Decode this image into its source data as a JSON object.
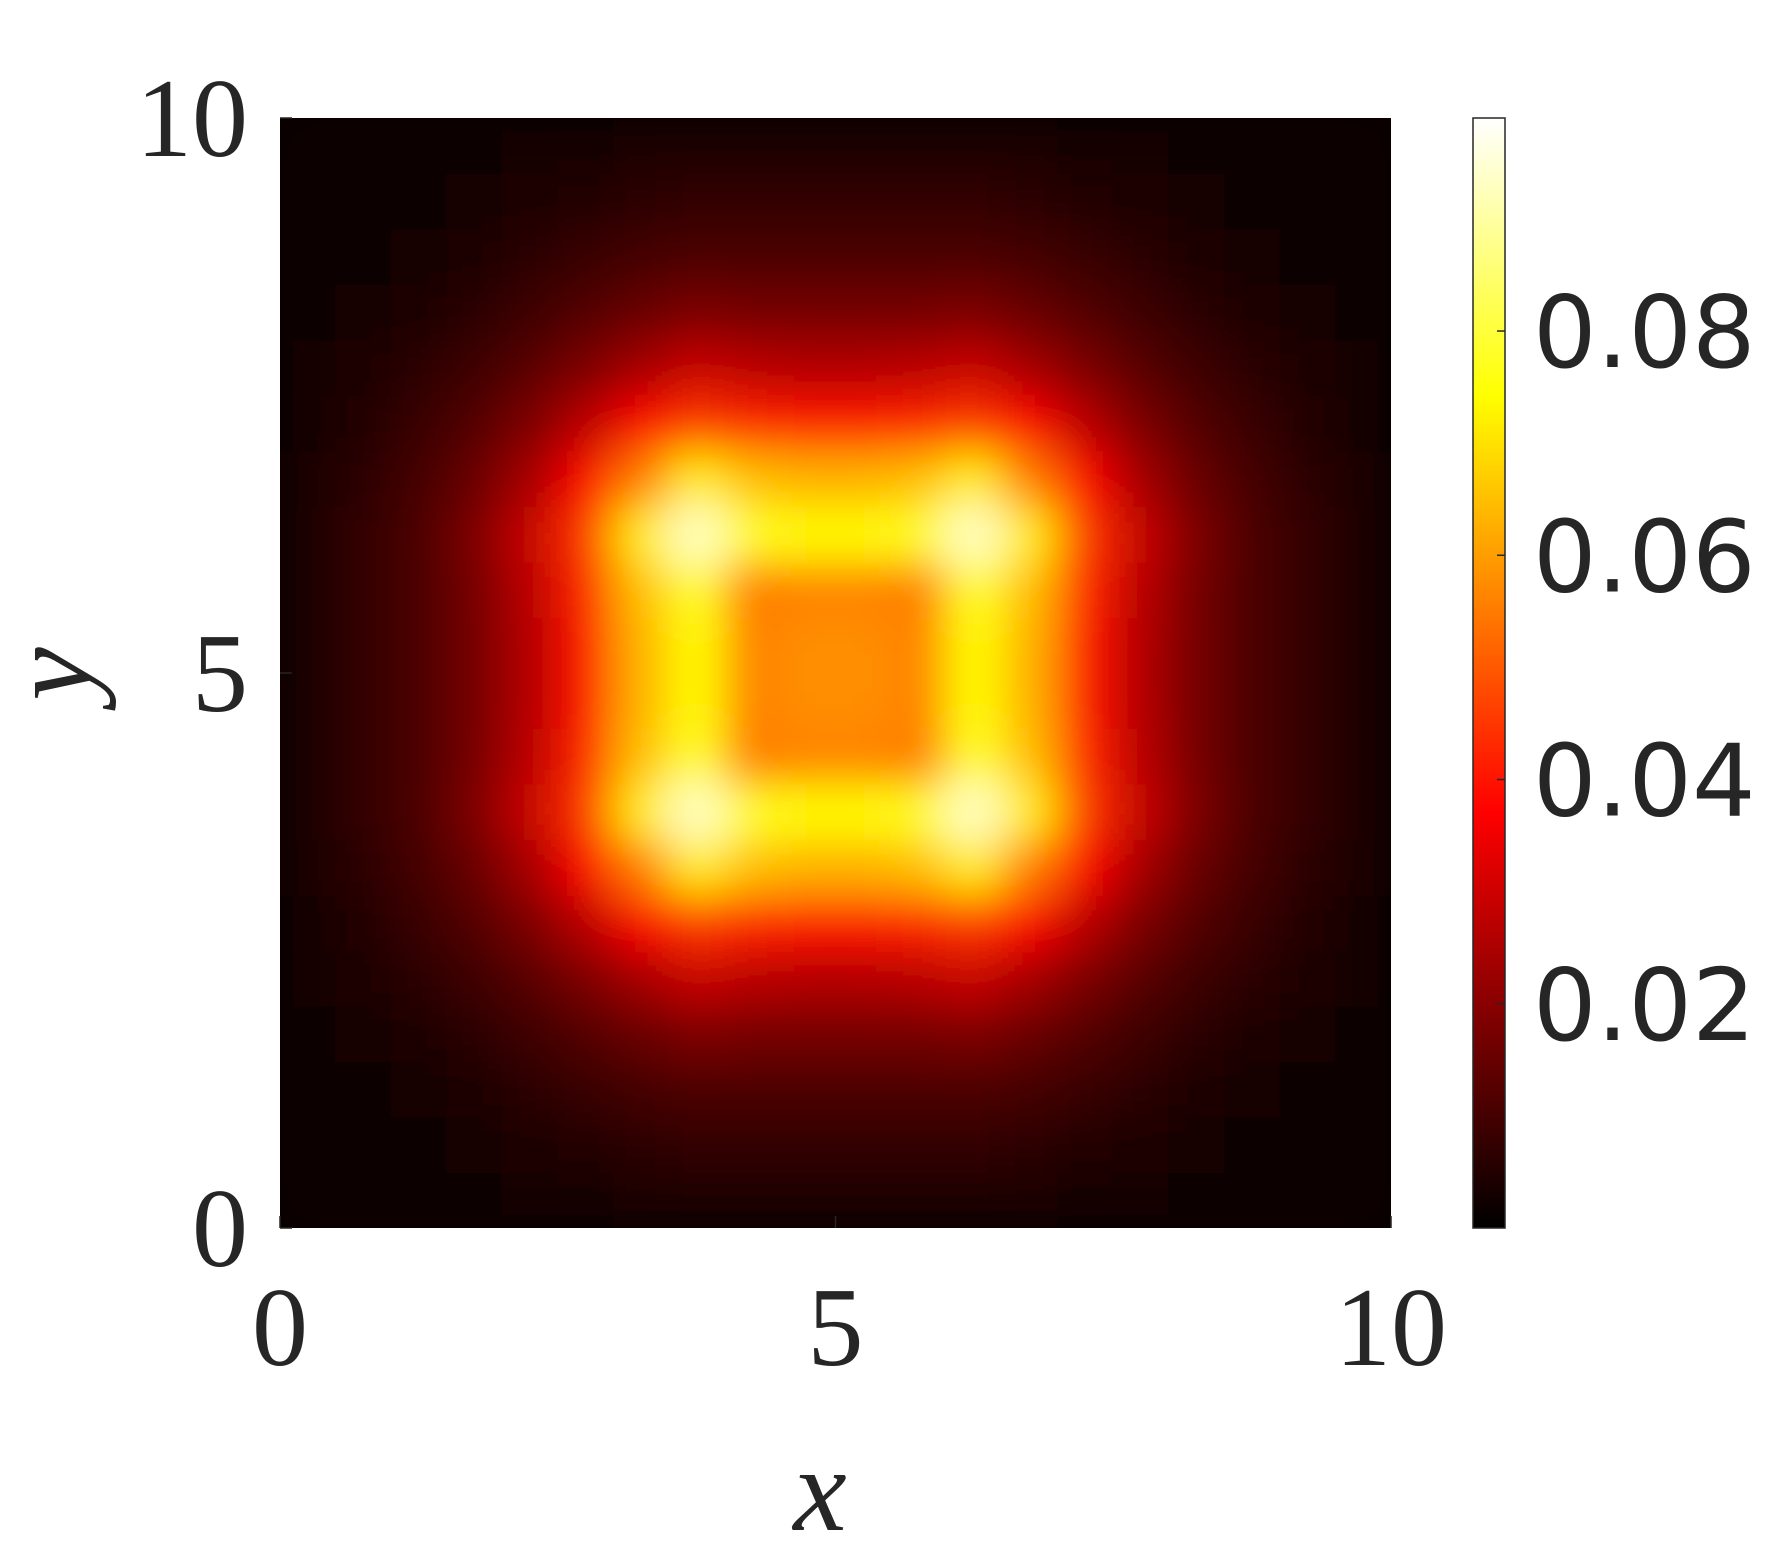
{
  "chart_data": {
    "type": "heatmap",
    "xlabel": "x",
    "ylabel": "y",
    "colormap": "hot",
    "xlim": [
      0,
      10
    ],
    "ylim": [
      0,
      10
    ],
    "xticks": [
      0,
      5,
      10
    ],
    "yticks": [
      0,
      5,
      10
    ],
    "zlim": [
      0,
      0.099
    ],
    "zticks": [
      0.02,
      0.04,
      0.06,
      0.08
    ],
    "x": [
      0.25,
      0.75,
      1.25,
      1.75,
      2.25,
      2.75,
      3.25,
      3.75,
      4.25,
      4.75,
      5.25,
      5.75,
      6.25,
      6.75,
      7.25,
      7.75,
      8.25,
      8.75,
      9.25,
      9.75
    ],
    "y": [
      0.25,
      0.75,
      1.25,
      1.75,
      2.25,
      2.75,
      3.25,
      3.75,
      4.25,
      4.75,
      5.25,
      5.75,
      6.25,
      6.75,
      7.25,
      7.75,
      8.25,
      8.75,
      9.25,
      9.75
    ],
    "z": [
      [
        0.001,
        0.001,
        0.002,
        0.002,
        0.003,
        0.003,
        0.004,
        0.004,
        0.004,
        0.004,
        0.004,
        0.004,
        0.004,
        0.004,
        0.003,
        0.003,
        0.002,
        0.002,
        0.001,
        0.001
      ],
      [
        0.001,
        0.002,
        0.002,
        0.003,
        0.004,
        0.005,
        0.006,
        0.007,
        0.007,
        0.007,
        0.007,
        0.007,
        0.007,
        0.006,
        0.005,
        0.004,
        0.003,
        0.002,
        0.002,
        0.001
      ],
      [
        0.002,
        0.002,
        0.003,
        0.004,
        0.006,
        0.008,
        0.01,
        0.011,
        0.011,
        0.011,
        0.011,
        0.011,
        0.011,
        0.01,
        0.008,
        0.006,
        0.004,
        0.003,
        0.002,
        0.002
      ],
      [
        0.002,
        0.003,
        0.004,
        0.006,
        0.009,
        0.012,
        0.015,
        0.018,
        0.017,
        0.017,
        0.017,
        0.017,
        0.018,
        0.015,
        0.012,
        0.009,
        0.006,
        0.004,
        0.003,
        0.002
      ],
      [
        0.003,
        0.004,
        0.006,
        0.009,
        0.013,
        0.018,
        0.024,
        0.029,
        0.027,
        0.026,
        0.026,
        0.027,
        0.029,
        0.024,
        0.018,
        0.013,
        0.009,
        0.006,
        0.004,
        0.003
      ],
      [
        0.003,
        0.005,
        0.008,
        0.012,
        0.018,
        0.027,
        0.037,
        0.045,
        0.042,
        0.04,
        0.04,
        0.042,
        0.045,
        0.037,
        0.027,
        0.018,
        0.012,
        0.008,
        0.005,
        0.003
      ],
      [
        0.004,
        0.006,
        0.01,
        0.015,
        0.024,
        0.037,
        0.055,
        0.072,
        0.065,
        0.063,
        0.063,
        0.065,
        0.072,
        0.055,
        0.037,
        0.024,
        0.015,
        0.01,
        0.006,
        0.004
      ],
      [
        0.004,
        0.007,
        0.011,
        0.018,
        0.029,
        0.045,
        0.072,
        0.094,
        0.078,
        0.074,
        0.074,
        0.078,
        0.094,
        0.072,
        0.045,
        0.029,
        0.018,
        0.011,
        0.007,
        0.004
      ],
      [
        0.004,
        0.007,
        0.011,
        0.017,
        0.027,
        0.042,
        0.065,
        0.078,
        0.055,
        0.056,
        0.056,
        0.055,
        0.078,
        0.065,
        0.042,
        0.027,
        0.017,
        0.011,
        0.007,
        0.004
      ],
      [
        0.004,
        0.007,
        0.011,
        0.017,
        0.026,
        0.04,
        0.063,
        0.074,
        0.056,
        0.058,
        0.058,
        0.056,
        0.074,
        0.063,
        0.04,
        0.026,
        0.017,
        0.011,
        0.007,
        0.004
      ],
      [
        0.004,
        0.007,
        0.011,
        0.017,
        0.026,
        0.04,
        0.063,
        0.074,
        0.056,
        0.058,
        0.058,
        0.056,
        0.074,
        0.063,
        0.04,
        0.026,
        0.017,
        0.011,
        0.007,
        0.004
      ],
      [
        0.004,
        0.007,
        0.011,
        0.017,
        0.027,
        0.042,
        0.065,
        0.078,
        0.055,
        0.056,
        0.056,
        0.055,
        0.078,
        0.065,
        0.042,
        0.027,
        0.017,
        0.011,
        0.007,
        0.004
      ],
      [
        0.004,
        0.007,
        0.011,
        0.018,
        0.029,
        0.045,
        0.072,
        0.094,
        0.078,
        0.074,
        0.074,
        0.078,
        0.094,
        0.072,
        0.045,
        0.029,
        0.018,
        0.011,
        0.007,
        0.004
      ],
      [
        0.004,
        0.006,
        0.01,
        0.015,
        0.024,
        0.037,
        0.055,
        0.072,
        0.065,
        0.063,
        0.063,
        0.065,
        0.072,
        0.055,
        0.037,
        0.024,
        0.015,
        0.01,
        0.006,
        0.004
      ],
      [
        0.003,
        0.005,
        0.008,
        0.012,
        0.018,
        0.027,
        0.037,
        0.045,
        0.042,
        0.04,
        0.04,
        0.042,
        0.045,
        0.037,
        0.027,
        0.018,
        0.012,
        0.008,
        0.005,
        0.003
      ],
      [
        0.003,
        0.004,
        0.006,
        0.009,
        0.013,
        0.018,
        0.024,
        0.029,
        0.027,
        0.026,
        0.026,
        0.027,
        0.029,
        0.024,
        0.018,
        0.013,
        0.009,
        0.006,
        0.004,
        0.003
      ],
      [
        0.002,
        0.003,
        0.004,
        0.006,
        0.009,
        0.012,
        0.015,
        0.018,
        0.017,
        0.017,
        0.017,
        0.017,
        0.018,
        0.015,
        0.012,
        0.009,
        0.006,
        0.004,
        0.003,
        0.002
      ],
      [
        0.002,
        0.002,
        0.003,
        0.004,
        0.006,
        0.008,
        0.01,
        0.011,
        0.011,
        0.011,
        0.011,
        0.011,
        0.011,
        0.01,
        0.008,
        0.006,
        0.004,
        0.003,
        0.002,
        0.002
      ],
      [
        0.001,
        0.002,
        0.002,
        0.003,
        0.004,
        0.005,
        0.006,
        0.007,
        0.007,
        0.007,
        0.007,
        0.007,
        0.007,
        0.006,
        0.005,
        0.004,
        0.003,
        0.002,
        0.002,
        0.001
      ],
      [
        0.001,
        0.001,
        0.002,
        0.002,
        0.003,
        0.003,
        0.004,
        0.004,
        0.004,
        0.004,
        0.004,
        0.004,
        0.004,
        0.004,
        0.003,
        0.003,
        0.002,
        0.002,
        0.001,
        0.001
      ]
    ]
  }
}
